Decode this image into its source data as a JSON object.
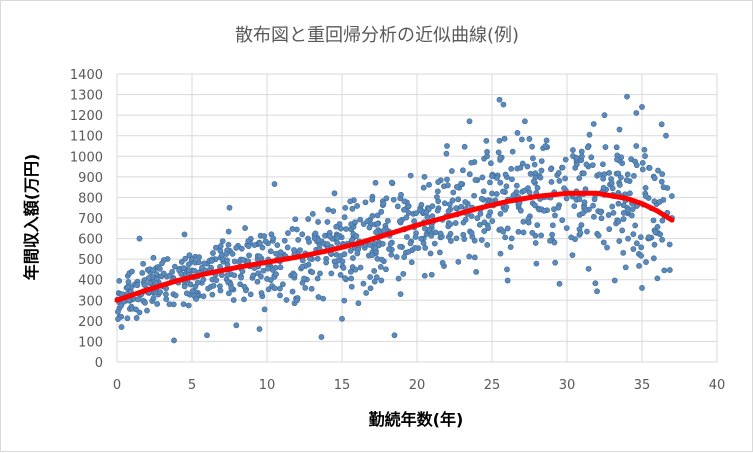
{
  "chart_data": {
    "type": "scatter",
    "title": "散布図と重回帰分析の近似曲線(例)",
    "xlabel": "勤続年数(年)",
    "ylabel": "年間収入額(万円)",
    "xlim": [
      0,
      40
    ],
    "ylim": [
      0,
      1400
    ],
    "xticks": [
      0,
      5,
      10,
      15,
      20,
      25,
      30,
      35,
      40
    ],
    "yticks": [
      0,
      100,
      200,
      300,
      400,
      500,
      600,
      700,
      800,
      900,
      1000,
      1100,
      1200,
      1300,
      1400
    ],
    "grid": true,
    "legend": "none",
    "colors": {
      "points": "#5b8bbd",
      "point_edge": "#3e6a96",
      "trend": "#ff0000",
      "grid": "#d9d9d9",
      "text": "#595959"
    },
    "series": [
      {
        "type": "scatter",
        "points_approx": 1000,
        "x_range": [
          0,
          37
        ],
        "sample": [
          [
            0.3,
            170
          ],
          [
            0.8,
            300
          ],
          [
            1.0,
            440
          ],
          [
            1.5,
            600
          ],
          [
            2.0,
            250
          ],
          [
            3.0,
            480
          ],
          [
            3.8,
            105
          ],
          [
            4.5,
            620
          ],
          [
            6.0,
            130
          ],
          [
            7.5,
            750
          ],
          [
            9.5,
            160
          ],
          [
            10.5,
            865
          ],
          [
            12.0,
            300
          ],
          [
            14.5,
            820
          ],
          [
            15.0,
            210
          ],
          [
            18.5,
            130
          ],
          [
            20.5,
            900
          ],
          [
            22.0,
            1050
          ],
          [
            23.5,
            1170
          ],
          [
            25.5,
            1275
          ],
          [
            26.0,
            450
          ],
          [
            29.5,
            380
          ],
          [
            31.5,
            1105
          ],
          [
            32.5,
            1200
          ],
          [
            33.5,
            1130
          ],
          [
            34.0,
            1290
          ],
          [
            35.0,
            1240
          ],
          [
            35.0,
            360
          ],
          [
            36.5,
            710
          ],
          [
            37.0,
            700
          ]
        ]
      },
      {
        "type": "line",
        "points": [
          [
            0,
            300
          ],
          [
            2,
            350
          ],
          [
            4,
            395
          ],
          [
            6,
            430
          ],
          [
            8,
            460
          ],
          [
            10,
            485
          ],
          [
            12,
            510
          ],
          [
            14,
            540
          ],
          [
            16,
            575
          ],
          [
            18,
            620
          ],
          [
            20,
            665
          ],
          [
            22,
            705
          ],
          [
            24,
            745
          ],
          [
            26,
            780
          ],
          [
            28,
            805
          ],
          [
            30,
            820
          ],
          [
            32,
            820
          ],
          [
            34,
            795
          ],
          [
            35,
            770
          ],
          [
            36,
            735
          ],
          [
            37,
            690
          ]
        ]
      }
    ]
  }
}
